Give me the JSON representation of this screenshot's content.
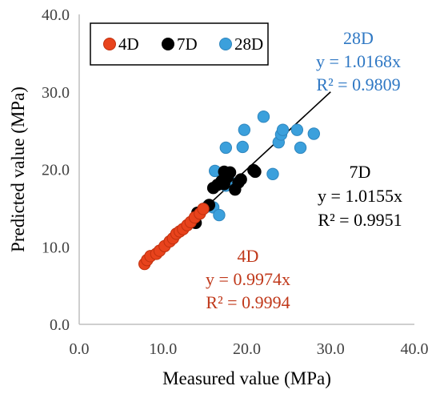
{
  "chart_data": {
    "type": "scatter",
    "xlabel": "Measured value (MPa)",
    "ylabel": "Predicted value (MPa)",
    "xlim": [
      0,
      40
    ],
    "ylim": [
      0,
      40
    ],
    "x_ticks": [
      "0.0",
      "10.0",
      "20.0",
      "30.0",
      "40.0"
    ],
    "y_ticks": [
      "0.0",
      "10.0",
      "20.0",
      "30.0",
      "40.0"
    ],
    "grid": false,
    "legend": {
      "placement": "top-left",
      "boxed": true
    },
    "series": [
      {
        "name": "4D",
        "color": "#e8431c",
        "edge": "#c0300e",
        "points": [
          [
            7.8,
            7.8
          ],
          [
            8.1,
            8.3
          ],
          [
            8.5,
            8.8
          ],
          [
            9.2,
            9.1
          ],
          [
            9.6,
            9.5
          ],
          [
            10.2,
            10.1
          ],
          [
            10.8,
            10.7
          ],
          [
            11.2,
            11.1
          ],
          [
            11.6,
            11.7
          ],
          [
            12.0,
            12.0
          ],
          [
            12.4,
            12.3
          ],
          [
            12.9,
            12.8
          ],
          [
            13.3,
            13.2
          ],
          [
            13.8,
            13.8
          ],
          [
            14.4,
            14.3
          ],
          [
            14.8,
            14.9
          ]
        ]
      },
      {
        "name": "7D",
        "color": "#000000",
        "edge": "#000000",
        "points": [
          [
            13.9,
            13.1
          ],
          [
            14.1,
            14.4
          ],
          [
            15.5,
            15.4
          ],
          [
            16.0,
            17.6
          ],
          [
            16.5,
            18.0
          ],
          [
            17.0,
            18.5
          ],
          [
            17.3,
            18.1
          ],
          [
            17.7,
            19.0
          ],
          [
            18.0,
            19.6
          ],
          [
            18.6,
            17.4
          ],
          [
            19.0,
            18.3
          ],
          [
            19.3,
            18.7
          ],
          [
            20.8,
            19.9
          ],
          [
            21.0,
            19.7
          ],
          [
            17.3,
            19.7
          ]
        ]
      },
      {
        "name": "28D",
        "color": "#3ba0dc",
        "edge": "#2f86be",
        "points": [
          [
            15.3,
            15.2
          ],
          [
            16.0,
            15.1
          ],
          [
            16.2,
            19.8
          ],
          [
            16.7,
            14.1
          ],
          [
            17.5,
            22.8
          ],
          [
            18.3,
            18.2
          ],
          [
            17.5,
            17.9
          ],
          [
            19.5,
            22.9
          ],
          [
            19.7,
            25.1
          ],
          [
            22.0,
            26.8
          ],
          [
            23.1,
            19.4
          ],
          [
            23.8,
            23.5
          ],
          [
            24.1,
            24.5
          ],
          [
            24.3,
            25.1
          ],
          [
            26.0,
            25.1
          ],
          [
            26.4,
            22.8
          ],
          [
            28.0,
            24.6
          ]
        ]
      }
    ],
    "fit_line": {
      "slope": 1.0,
      "x_range": [
        7.6,
        30.0
      ],
      "color": "#000000"
    },
    "annotations": [
      {
        "series": "28D",
        "lines": [
          "28D",
          "y = 1.0168x",
          "R² = 0.9809"
        ],
        "color": "#2f78c4"
      },
      {
        "series": "7D",
        "lines": [
          "7D",
          "y = 1.0155x",
          "R² = 0.9951"
        ],
        "color": "#000000"
      },
      {
        "series": "4D",
        "lines": [
          "4D",
          "y = 0.9974x",
          "R² = 0.9994"
        ],
        "color": "#c0391b"
      }
    ]
  }
}
